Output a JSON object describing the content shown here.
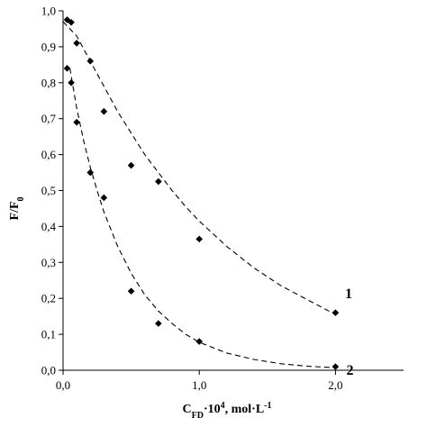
{
  "chart_data": {
    "type": "scatter",
    "xlim": [
      0,
      2.5
    ],
    "ylim": [
      0,
      1.0
    ],
    "x_ticks": [
      {
        "value": 0.0,
        "label": "0,0"
      },
      {
        "value": 1.0,
        "label": "1,0"
      },
      {
        "value": 2.0,
        "label": "2,0"
      }
    ],
    "y_ticks": [
      {
        "value": 0.0,
        "label": "0,0"
      },
      {
        "value": 0.1,
        "label": "0,1"
      },
      {
        "value": 0.2,
        "label": "0,2"
      },
      {
        "value": 0.3,
        "label": "0,3"
      },
      {
        "value": 0.4,
        "label": "0,4"
      },
      {
        "value": 0.5,
        "label": "0,5"
      },
      {
        "value": 0.6,
        "label": "0,6"
      },
      {
        "value": 0.7,
        "label": "0,7"
      },
      {
        "value": 0.8,
        "label": "0,8"
      },
      {
        "value": 0.9,
        "label": "0,9"
      },
      {
        "value": 1.0,
        "label": "1,0"
      }
    ],
    "xlabel": {
      "main": "C",
      "sub": "FD",
      "mid": "·10",
      "sup": "4",
      "rest": ", mol·L",
      "sup2": "-1"
    },
    "ylabel": {
      "main": "F/F",
      "sub": "0"
    },
    "grid": false,
    "series": [
      {
        "name": "1",
        "points": [
          {
            "x": 0.03,
            "y": 0.975
          },
          {
            "x": 0.06,
            "y": 0.968
          },
          {
            "x": 0.1,
            "y": 0.91
          },
          {
            "x": 0.2,
            "y": 0.86
          },
          {
            "x": 0.3,
            "y": 0.72
          },
          {
            "x": 0.5,
            "y": 0.57
          },
          {
            "x": 0.7,
            "y": 0.525
          },
          {
            "x": 1.0,
            "y": 0.365
          },
          {
            "x": 2.0,
            "y": 0.16
          }
        ],
        "fit": [
          {
            "x": 0.0,
            "y": 0.97
          },
          {
            "x": 0.1,
            "y": 0.93
          },
          {
            "x": 0.2,
            "y": 0.86
          },
          {
            "x": 0.3,
            "y": 0.79
          },
          {
            "x": 0.4,
            "y": 0.72
          },
          {
            "x": 0.5,
            "y": 0.66
          },
          {
            "x": 0.6,
            "y": 0.6
          },
          {
            "x": 0.7,
            "y": 0.55
          },
          {
            "x": 0.8,
            "y": 0.5
          },
          {
            "x": 0.9,
            "y": 0.455
          },
          {
            "x": 1.0,
            "y": 0.415
          },
          {
            "x": 1.2,
            "y": 0.345
          },
          {
            "x": 1.4,
            "y": 0.285
          },
          {
            "x": 1.6,
            "y": 0.235
          },
          {
            "x": 1.8,
            "y": 0.195
          },
          {
            "x": 2.0,
            "y": 0.155
          }
        ]
      },
      {
        "name": "2",
        "points": [
          {
            "x": 0.03,
            "y": 0.84
          },
          {
            "x": 0.06,
            "y": 0.8
          },
          {
            "x": 0.1,
            "y": 0.69
          },
          {
            "x": 0.2,
            "y": 0.55
          },
          {
            "x": 0.3,
            "y": 0.48
          },
          {
            "x": 0.5,
            "y": 0.22
          },
          {
            "x": 0.7,
            "y": 0.13
          },
          {
            "x": 1.0,
            "y": 0.08
          },
          {
            "x": 2.0,
            "y": 0.01
          }
        ],
        "fit": [
          {
            "x": 0.05,
            "y": 0.84
          },
          {
            "x": 0.1,
            "y": 0.73
          },
          {
            "x": 0.15,
            "y": 0.64
          },
          {
            "x": 0.2,
            "y": 0.565
          },
          {
            "x": 0.25,
            "y": 0.5
          },
          {
            "x": 0.3,
            "y": 0.44
          },
          {
            "x": 0.4,
            "y": 0.345
          },
          {
            "x": 0.5,
            "y": 0.27
          },
          {
            "x": 0.6,
            "y": 0.21
          },
          {
            "x": 0.7,
            "y": 0.165
          },
          {
            "x": 0.8,
            "y": 0.13
          },
          {
            "x": 0.9,
            "y": 0.1
          },
          {
            "x": 1.0,
            "y": 0.078
          },
          {
            "x": 1.2,
            "y": 0.048
          },
          {
            "x": 1.4,
            "y": 0.03
          },
          {
            "x": 1.6,
            "y": 0.018
          },
          {
            "x": 1.8,
            "y": 0.011
          },
          {
            "x": 2.0,
            "y": 0.007
          }
        ]
      }
    ],
    "curve_labels": [
      {
        "text": "1",
        "x": 2.07,
        "y": 0.2
      },
      {
        "text": "2",
        "x": 2.08,
        "y": -0.012
      }
    ]
  }
}
